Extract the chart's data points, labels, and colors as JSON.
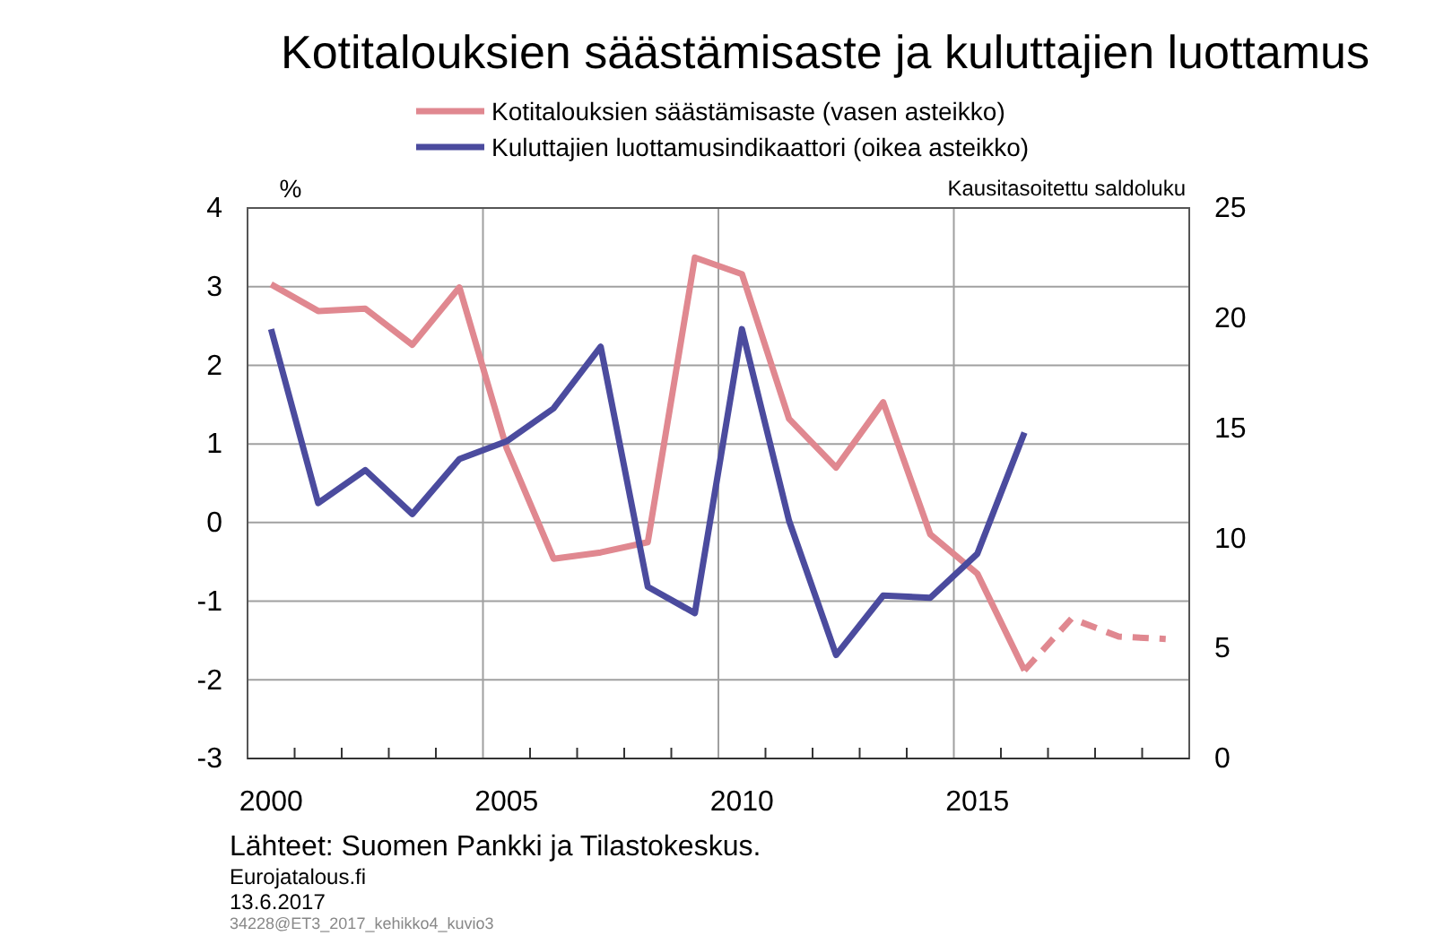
{
  "chart_data": {
    "type": "line",
    "title": "Kotitalouksien säästämisaste ja kuluttajien luottamus",
    "ylabel": "%",
    "y2label": "Kausitasoitettu saldoluku",
    "x": [
      2000,
      2001,
      2002,
      2003,
      2004,
      2005,
      2006,
      2007,
      2008,
      2009,
      2010,
      2011,
      2012,
      2013,
      2014,
      2015,
      2016,
      2017,
      2018,
      2019
    ],
    "series": [
      {
        "name": "Kotitalouksien säästämisaste (vasen asteikko)",
        "color": "#e08890",
        "line_style": "solid",
        "values": [
          3.03,
          2.69,
          2.72,
          2.26,
          2.99,
          0.95,
          -0.46,
          -0.38,
          -0.25,
          3.37,
          3.16,
          1.32,
          0.7,
          1.53,
          -0.15,
          -0.65,
          -1.88,
          null,
          null,
          null
        ]
      },
      {
        "color": "#e08890",
        "line_style": "dashed",
        "values": [
          null,
          null,
          null,
          null,
          null,
          null,
          null,
          null,
          null,
          null,
          null,
          null,
          null,
          null,
          null,
          null,
          -1.88,
          -1.22,
          -1.45,
          -1.48
        ]
      },
      {
        "name": "Kuluttajien luottamusindikaattori (oikea asteikko)",
        "color": "#4b4b9e",
        "axis": "y2",
        "line_style": "solid",
        "values": [
          19.5,
          11.6,
          13.1,
          11.1,
          13.6,
          14.4,
          15.9,
          18.7,
          7.8,
          6.6,
          19.5,
          10.8,
          4.7,
          7.4,
          7.3,
          9.3,
          14.8,
          null,
          null,
          null
        ]
      }
    ],
    "xlim": [
      1999.5,
      2019.5
    ],
    "xticks": [
      {
        "value": 2000,
        "label": "2000"
      },
      {
        "value": 2005,
        "label": "2005"
      },
      {
        "value": 2010,
        "label": "2010"
      },
      {
        "value": 2015,
        "label": "2015"
      },
      {
        "value": 2000.5,
        "label": null
      },
      {
        "value": 2001.5,
        "label": null
      },
      {
        "value": 2002.5,
        "label": null
      },
      {
        "value": 2003.5,
        "label": null
      },
      {
        "value": 2005.5,
        "label": null
      },
      {
        "value": 2006.5,
        "label": null
      },
      {
        "value": 2007.5,
        "label": null
      },
      {
        "value": 2008.5,
        "label": null
      },
      {
        "value": 2010.5,
        "label": null
      },
      {
        "value": 2011.5,
        "label": null
      },
      {
        "value": 2012.5,
        "label": null
      },
      {
        "value": 2013.5,
        "label": null
      },
      {
        "value": 2015.5,
        "label": null
      },
      {
        "value": 2016.5,
        "label": null
      },
      {
        "value": 2017.5,
        "label": null
      },
      {
        "value": 2018.5,
        "label": null
      }
    ],
    "ylim": [
      -3,
      4
    ],
    "yticks": [
      -3,
      -2,
      -1,
      0,
      1,
      2,
      3,
      4
    ],
    "y2lim": [
      0,
      25
    ],
    "y2ticks": [
      0,
      5,
      10,
      15,
      20,
      25
    ],
    "grid": "y",
    "ref_lines": [
      {
        "axis": "x",
        "value": 2004.5,
        "color": "#a0a0a0"
      },
      {
        "axis": "x",
        "value": 2009.5,
        "color": "#a0a0a0"
      },
      {
        "axis": "x",
        "value": 2014.5,
        "color": "#a0a0a0"
      }
    ],
    "legend": "top",
    "marker": "none",
    "annotations": [
      "Lähteet: Suomen Pankki ja Tilastokeskus.",
      "Eurojatalous.fi",
      "13.6.2017",
      "34228@ET3_2017_kehikko4_kuvio3"
    ]
  }
}
